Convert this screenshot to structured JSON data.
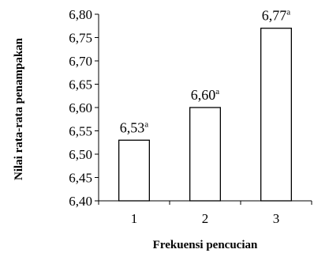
{
  "chart_data": {
    "type": "bar",
    "categories": [
      "1",
      "2",
      "3"
    ],
    "values": [
      6.53,
      6.6,
      6.77
    ],
    "data_labels": [
      "6,53",
      "6,60",
      "6,77"
    ],
    "data_label_superscripts": [
      "a",
      "a",
      "a"
    ],
    "title": "",
    "xlabel": "Frekuensi pencucian",
    "ylabel": "Nilai rata-rata penampakan",
    "ylim": [
      6.4,
      6.8
    ],
    "yticks": [
      6.4,
      6.45,
      6.5,
      6.55,
      6.6,
      6.65,
      6.7,
      6.75,
      6.8
    ],
    "ytick_labels": [
      "6,40",
      "6,45",
      "6,50",
      "6,55",
      "6,60",
      "6,65",
      "6,70",
      "6,75",
      "6,80"
    ],
    "grid": false,
    "legend": "none",
    "bar_fill": "#ffffff",
    "bar_stroke": "#000000"
  }
}
